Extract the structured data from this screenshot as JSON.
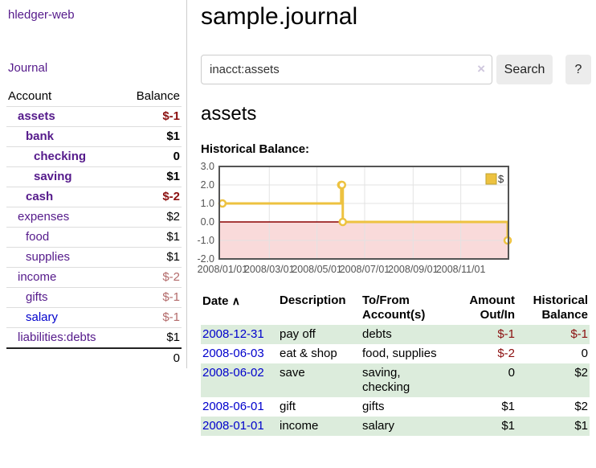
{
  "app": {
    "title": "hledger-web"
  },
  "sidebar": {
    "nav_journal": "Journal",
    "accounts": {
      "headers": {
        "account": "Account",
        "balance": "Balance"
      },
      "rows": [
        {
          "name": "assets",
          "balance": "$-1"
        },
        {
          "name": "bank",
          "balance": "$1"
        },
        {
          "name": "checking",
          "balance": "0"
        },
        {
          "name": "saving",
          "balance": "$1"
        },
        {
          "name": "cash",
          "balance": "$-2"
        },
        {
          "name": "expenses",
          "balance": "$2"
        },
        {
          "name": "food",
          "balance": "$1"
        },
        {
          "name": "supplies",
          "balance": "$1"
        },
        {
          "name": "income",
          "balance": "$-2"
        },
        {
          "name": "gifts",
          "balance": "$-1"
        },
        {
          "name": "salary",
          "balance": "$-1"
        },
        {
          "name": "liabilities:debts",
          "balance": "$1"
        }
      ],
      "total": "0"
    }
  },
  "main": {
    "title": "sample.journal",
    "search": {
      "value": "inacct:assets",
      "clear_icon": "×",
      "button_label": "Search",
      "help_label": "?"
    },
    "account_heading": "assets",
    "chart_label": "Historical Balance:"
  },
  "chart_data": {
    "type": "line",
    "step": true,
    "title": "Historical Balance:",
    "series": [
      {
        "name": "$",
        "color": "#edc240",
        "points": [
          [
            "2008-01-01",
            1
          ],
          [
            "2008-06-01",
            2
          ],
          [
            "2008-06-02",
            2
          ],
          [
            "2008-06-03",
            0
          ],
          [
            "2008-12-31",
            -1
          ]
        ]
      }
    ],
    "x_range": [
      "2008-01-01",
      "2008-12-31"
    ],
    "ylim": [
      -2,
      3
    ],
    "y_ticks": [
      "3.0",
      "2.0",
      "1.0",
      "0.0",
      "-1.0",
      "-2.0"
    ],
    "x_ticks": [
      "2008/01/01",
      "2008/03/01",
      "2008/05/01",
      "2008/07/01",
      "2008/09/01",
      "2008/11/01"
    ],
    "grid": true,
    "negative_region_color": "#f9dada",
    "zero_line_color": "#8b0000",
    "border_color": "#545454",
    "tick_label_color": "#545454",
    "legend": {
      "label": "$",
      "position": "top-right"
    }
  },
  "register": {
    "headers": {
      "date": "Date",
      "sort_icon": "∧",
      "description": "Description",
      "accounts": "To/From Account(s)",
      "amount": "Amount Out/In",
      "balance": "Historical Balance"
    },
    "rows": [
      {
        "date": "2008-12-31",
        "description": "pay off",
        "accounts": "debts",
        "amount": "$-1",
        "balance": "$-1"
      },
      {
        "date": "2008-06-03",
        "description": "eat & shop",
        "accounts": "food, supplies",
        "amount": "$-2",
        "balance": "0"
      },
      {
        "date": "2008-06-02",
        "description": "save",
        "accounts": "saving, checking",
        "amount": "0",
        "balance": "$2"
      },
      {
        "date": "2008-06-01",
        "description": "gift",
        "accounts": "gifts",
        "amount": "$1",
        "balance": "$2"
      },
      {
        "date": "2008-01-01",
        "description": "income",
        "accounts": "salary",
        "amount": "$1",
        "balance": "$1"
      }
    ]
  },
  "colors": {
    "link_purple": "#551a8b",
    "link_blue": "#0000cc",
    "negative_strong": "#8b0f0f",
    "negative_soft": "#b36a6a",
    "row_stripe_green": "#dcecdc",
    "series_gold": "#edc240"
  }
}
